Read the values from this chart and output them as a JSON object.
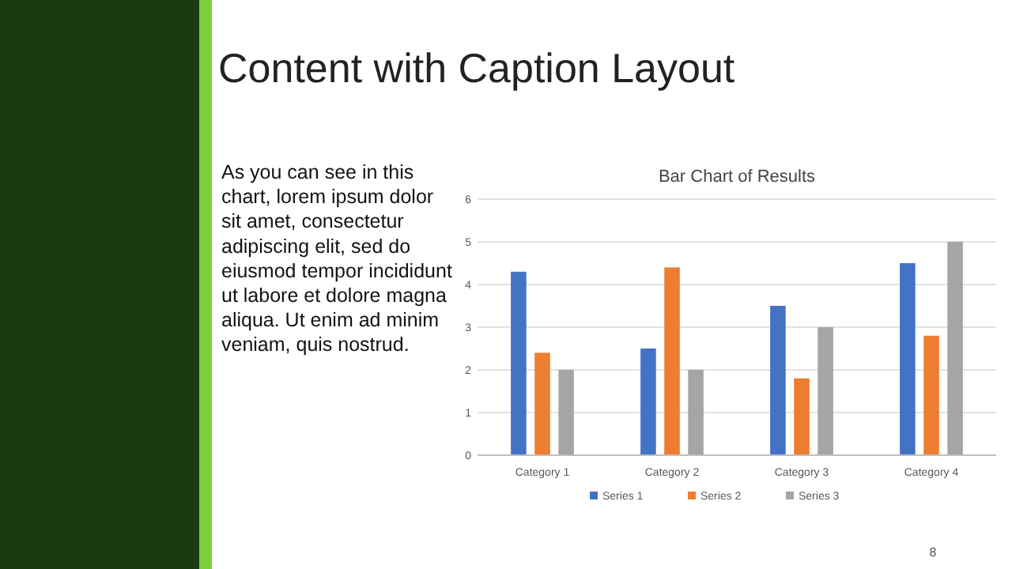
{
  "chart_data": {
    "type": "bar",
    "title": "Content with Caption Layout",
    "subtitle": "Bar Chart of Results",
    "categories": [
      "Category 1",
      "Category 2",
      "Category 3",
      "Category 4"
    ],
    "series": [
      {
        "name": "Series 1",
        "color": "#4472c4",
        "values": [
          4.3,
          2.5,
          3.5,
          4.5
        ]
      },
      {
        "name": "Series 2",
        "color": "#ed7d31",
        "values": [
          2.4,
          4.4,
          1.8,
          2.8
        ]
      },
      {
        "name": "Series 3",
        "color": "#a5a5a5",
        "values": [
          2,
          2,
          3,
          5
        ]
      }
    ],
    "ylim": [
      0,
      6
    ],
    "yticks": [
      0,
      1,
      2,
      3,
      4,
      5,
      6
    ],
    "grid": "y",
    "legend": "bottom",
    "annotations": [
      "As you can see in this chart, lorem ipsum dolor sit amet, consectetur adipiscing elit, sed do eiusmod tempor incididunt ut labore et dolore magna aliqua. Ut enim ad minim veniam, quis nostrud.",
      "8"
    ]
  }
}
